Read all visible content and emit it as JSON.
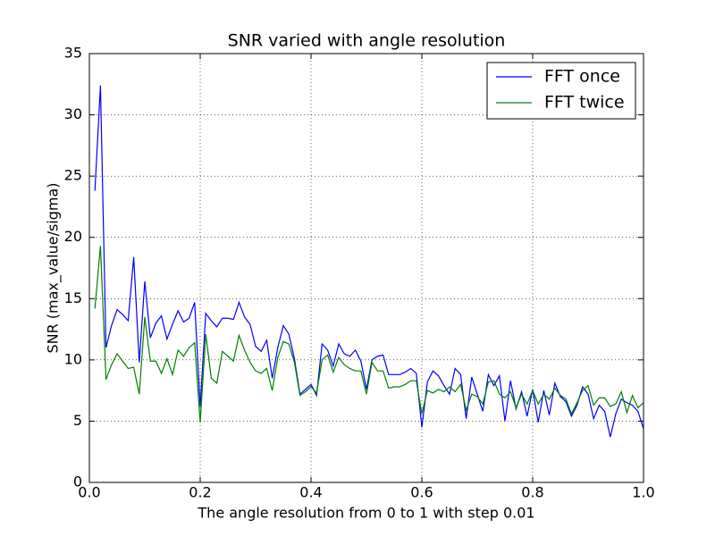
{
  "chart_data": {
    "type": "line",
    "title": "SNR varied with angle resolution",
    "xlabel": "The angle resolution from 0 to 1 with step 0.01",
    "ylabel": "SNR (max_value/sigma)",
    "x": [
      0.01,
      0.02,
      0.03,
      0.04,
      0.05,
      0.06,
      0.07,
      0.08,
      0.09,
      0.1,
      0.11,
      0.12,
      0.13,
      0.14,
      0.15,
      0.16,
      0.17,
      0.18,
      0.19,
      0.2,
      0.21,
      0.22,
      0.23,
      0.24,
      0.25,
      0.26,
      0.27,
      0.28,
      0.29,
      0.3,
      0.31,
      0.32,
      0.33,
      0.34,
      0.35,
      0.36,
      0.37,
      0.38,
      0.39,
      0.4,
      0.41,
      0.42,
      0.43,
      0.44,
      0.45,
      0.46,
      0.47,
      0.48,
      0.49,
      0.5,
      0.51,
      0.52,
      0.53,
      0.54,
      0.55,
      0.56,
      0.57,
      0.58,
      0.59,
      0.6,
      0.61,
      0.62,
      0.63,
      0.64,
      0.65,
      0.66,
      0.67,
      0.68,
      0.69,
      0.7,
      0.71,
      0.72,
      0.73,
      0.74,
      0.75,
      0.76,
      0.77,
      0.78,
      0.79,
      0.8,
      0.81,
      0.82,
      0.83,
      0.84,
      0.85,
      0.86,
      0.87,
      0.88,
      0.89,
      0.9,
      0.91,
      0.92,
      0.93,
      0.94,
      0.95,
      0.96,
      0.97,
      0.98,
      0.99,
      1.0
    ],
    "series": [
      {
        "name": "FFT once",
        "color": "#0000ff",
        "values": [
          23.8,
          32.4,
          11.0,
          12.8,
          14.1,
          13.7,
          13.2,
          18.4,
          9.8,
          16.4,
          11.8,
          13.0,
          13.6,
          11.7,
          12.9,
          14.0,
          13.1,
          13.4,
          14.7,
          6.2,
          13.8,
          13.2,
          12.7,
          13.4,
          13.4,
          13.3,
          14.7,
          13.5,
          12.9,
          11.1,
          10.7,
          11.6,
          8.5,
          11.0,
          12.8,
          12.1,
          10.1,
          7.2,
          7.6,
          8.0,
          7.1,
          11.3,
          10.8,
          9.5,
          11.3,
          10.5,
          10.3,
          10.8,
          9.9,
          7.6,
          10.0,
          10.3,
          10.4,
          8.8,
          8.8,
          8.8,
          9.0,
          9.3,
          8.9,
          4.5,
          8.2,
          9.1,
          8.7,
          7.9,
          7.2,
          9.3,
          8.8,
          5.2,
          8.6,
          7.2,
          5.8,
          8.8,
          7.9,
          8.7,
          5.0,
          8.3,
          6.0,
          7.4,
          5.4,
          7.6,
          4.9,
          7.5,
          5.5,
          8.1,
          7.0,
          6.6,
          5.4,
          6.3,
          7.8,
          7.2,
          5.2,
          6.3,
          5.8,
          3.7,
          5.6,
          6.8,
          6.5,
          6.3,
          5.8,
          4.4
        ]
      },
      {
        "name": "FFT twice",
        "color": "#008000",
        "values": [
          14.2,
          19.3,
          8.4,
          9.6,
          10.5,
          9.9,
          9.3,
          9.4,
          7.2,
          13.5,
          9.9,
          9.9,
          8.9,
          10.1,
          8.8,
          10.8,
          10.3,
          11.0,
          11.4,
          4.9,
          12.1,
          8.5,
          8.1,
          10.7,
          10.3,
          9.9,
          12.0,
          10.8,
          9.8,
          9.1,
          8.9,
          9.3,
          7.5,
          10.2,
          11.5,
          11.3,
          9.8,
          7.1,
          7.4,
          7.8,
          7.3,
          10.0,
          10.4,
          9.0,
          10.2,
          9.6,
          9.3,
          9.1,
          9.1,
          7.2,
          9.8,
          9.1,
          9.1,
          7.7,
          7.8,
          7.8,
          8.0,
          8.3,
          8.3,
          5.6,
          7.5,
          7.3,
          7.6,
          7.4,
          7.8,
          7.4,
          8.0,
          5.9,
          7.2,
          7.0,
          6.4,
          8.2,
          8.3,
          7.2,
          6.9,
          7.4,
          6.1,
          7.2,
          6.4,
          7.5,
          6.4,
          7.2,
          6.8,
          7.7,
          7.1,
          6.8,
          5.6,
          6.5,
          7.5,
          7.9,
          6.3,
          6.9,
          6.9,
          6.2,
          6.4,
          7.4,
          5.7,
          7.1,
          6.1,
          6.5
        ]
      }
    ],
    "xlim": [
      0,
      1
    ],
    "ylim": [
      0,
      35
    ],
    "xticks": [
      {
        "value": 0,
        "label": "0.0"
      },
      0.2,
      0.4,
      0.6,
      0.8,
      {
        "value": 1,
        "label": "1.0"
      }
    ],
    "yticks": [
      0,
      5,
      10,
      15,
      20,
      25,
      30,
      35
    ],
    "grid": true,
    "legend": "upper right"
  }
}
